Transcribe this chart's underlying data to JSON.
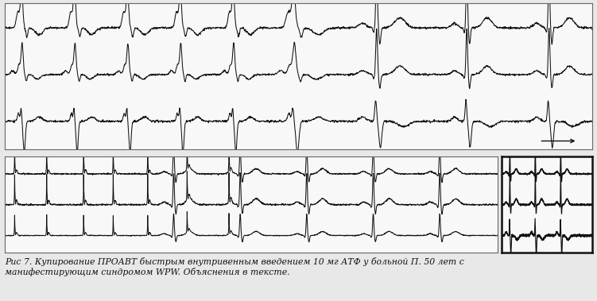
{
  "bg_color": "#e8e8e8",
  "panel_bg": "#f8f8f8",
  "line_color": "#111111",
  "caption_line1": "Рис 7. Купирование ПРОАВТ быстрым внутривенным введением 10 мг АТФ у больной П. 50 лет с",
  "caption_line2": "манифестирующим синдромом WPW. Объяснения в тексте.",
  "caption_fontsize": 7.8,
  "arrow_color": "#111111"
}
